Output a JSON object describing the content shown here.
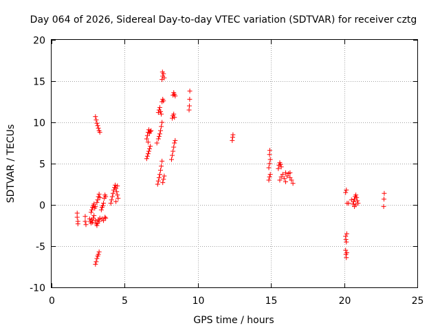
{
  "chart_data": {
    "type": "scatter",
    "title": "Day 064 of 2026, Sidereal Day-to-day VTEC variation (SDTVAR) for receiver cztg",
    "xlabel": "GPS time / hours",
    "ylabel": "SDTVAR / TECUs",
    "xlim": [
      0,
      25
    ],
    "ylim": [
      -10,
      20
    ],
    "xticks": [
      0,
      5,
      10,
      15,
      20,
      25
    ],
    "yticks": [
      -10,
      -5,
      0,
      5,
      10,
      15,
      20
    ],
    "grid": true,
    "marker": "+",
    "color": "#ff0000",
    "series": [
      {
        "name": "SDTVAR",
        "points": [
          [
            1.75,
            -1.0
          ],
          [
            1.75,
            -1.5
          ],
          [
            1.8,
            -2.0
          ],
          [
            1.8,
            -2.3
          ],
          [
            2.3,
            -1.4
          ],
          [
            2.3,
            -2.0
          ],
          [
            2.35,
            -2.4
          ],
          [
            2.6,
            -1.7
          ],
          [
            2.65,
            -2.0
          ],
          [
            2.7,
            -2.2
          ],
          [
            2.75,
            -1.8
          ],
          [
            2.8,
            -2.1
          ],
          [
            2.85,
            -1.6
          ],
          [
            2.9,
            -1.3
          ],
          [
            2.7,
            -0.9
          ],
          [
            2.75,
            -0.6
          ],
          [
            2.8,
            -0.3
          ],
          [
            2.85,
            -0.1
          ],
          [
            2.9,
            0.1
          ],
          [
            2.95,
            -0.4
          ],
          [
            3.0,
            -0.2
          ],
          [
            3.0,
            -1.9
          ],
          [
            3.05,
            -2.3
          ],
          [
            3.1,
            -2.5
          ],
          [
            3.15,
            -2.2
          ],
          [
            3.2,
            -1.8
          ],
          [
            3.25,
            -2.0
          ],
          [
            3.3,
            -1.6
          ],
          [
            3.1,
            0.3
          ],
          [
            3.15,
            0.6
          ],
          [
            3.2,
            1.0
          ],
          [
            3.25,
            1.3
          ],
          [
            3.3,
            0.9
          ],
          [
            3.4,
            -0.6
          ],
          [
            3.45,
            -0.3
          ],
          [
            3.5,
            -0.1
          ],
          [
            3.55,
            0.2
          ],
          [
            3.6,
            0.8
          ],
          [
            3.65,
            1.2
          ],
          [
            3.7,
            1.0
          ],
          [
            3.45,
            -1.7
          ],
          [
            3.55,
            -1.9
          ],
          [
            3.65,
            -1.5
          ],
          [
            3.7,
            -1.6
          ],
          [
            3.0,
            10.7
          ],
          [
            3.05,
            10.3
          ],
          [
            3.1,
            9.9
          ],
          [
            3.15,
            9.6
          ],
          [
            3.2,
            9.3
          ],
          [
            3.25,
            9.0
          ],
          [
            3.3,
            8.8
          ],
          [
            3.0,
            -7.2
          ],
          [
            3.05,
            -6.9
          ],
          [
            3.1,
            -6.5
          ],
          [
            3.15,
            -6.2
          ],
          [
            3.2,
            -6.0
          ],
          [
            3.25,
            -5.7
          ],
          [
            4.05,
            0.2
          ],
          [
            4.1,
            0.6
          ],
          [
            4.15,
            1.0
          ],
          [
            4.2,
            1.4
          ],
          [
            4.25,
            1.8
          ],
          [
            4.3,
            2.1
          ],
          [
            4.35,
            2.4
          ],
          [
            4.4,
            2.0
          ],
          [
            4.45,
            1.6
          ],
          [
            4.5,
            1.2
          ],
          [
            4.55,
            0.8
          ],
          [
            4.4,
            0.4
          ],
          [
            4.5,
            2.3
          ],
          [
            6.5,
            5.6
          ],
          [
            6.55,
            5.9
          ],
          [
            6.6,
            6.2
          ],
          [
            6.65,
            6.5
          ],
          [
            6.7,
            6.8
          ],
          [
            6.75,
            7.1
          ],
          [
            6.6,
            7.6
          ],
          [
            6.5,
            8.0
          ],
          [
            6.55,
            8.4
          ],
          [
            6.6,
            8.8
          ],
          [
            6.65,
            9.1
          ],
          [
            6.7,
            8.7
          ],
          [
            6.75,
            8.9
          ],
          [
            6.8,
            9.0
          ],
          [
            7.2,
            7.5
          ],
          [
            7.3,
            8.0
          ],
          [
            7.35,
            8.3
          ],
          [
            7.4,
            8.6
          ],
          [
            7.45,
            9.0
          ],
          [
            7.5,
            9.5
          ],
          [
            7.55,
            10.0
          ],
          [
            7.25,
            2.5
          ],
          [
            7.3,
            2.9
          ],
          [
            7.35,
            3.3
          ],
          [
            7.4,
            3.7
          ],
          [
            7.45,
            4.2
          ],
          [
            7.5,
            4.7
          ],
          [
            7.55,
            5.3
          ],
          [
            7.6,
            2.7
          ],
          [
            7.65,
            3.1
          ],
          [
            7.7,
            3.5
          ],
          [
            7.3,
            11.2
          ],
          [
            7.35,
            11.5
          ],
          [
            7.4,
            11.8
          ],
          [
            7.45,
            11.3
          ],
          [
            7.5,
            11.0
          ],
          [
            7.55,
            12.5
          ],
          [
            7.6,
            12.8
          ],
          [
            7.65,
            12.6
          ],
          [
            7.55,
            15.2
          ],
          [
            7.6,
            15.6
          ],
          [
            7.65,
            15.9
          ],
          [
            7.7,
            15.4
          ],
          [
            7.58,
            16.1
          ],
          [
            8.2,
            5.5
          ],
          [
            8.25,
            6.0
          ],
          [
            8.3,
            6.5
          ],
          [
            8.35,
            7.0
          ],
          [
            8.4,
            7.5
          ],
          [
            8.45,
            7.8
          ],
          [
            8.25,
            10.5
          ],
          [
            8.3,
            10.8
          ],
          [
            8.35,
            11.0
          ],
          [
            8.4,
            10.6
          ],
          [
            8.3,
            13.3
          ],
          [
            8.35,
            13.6
          ],
          [
            8.4,
            13.4
          ],
          [
            8.45,
            13.2
          ],
          [
            9.4,
            11.5
          ],
          [
            9.42,
            12.0
          ],
          [
            9.44,
            12.8
          ],
          [
            9.45,
            13.8
          ],
          [
            12.35,
            7.8
          ],
          [
            12.38,
            8.2
          ],
          [
            12.4,
            8.5
          ],
          [
            14.85,
            3.0
          ],
          [
            14.9,
            3.4
          ],
          [
            14.95,
            3.7
          ],
          [
            14.85,
            4.5
          ],
          [
            14.9,
            5.0
          ],
          [
            14.95,
            5.5
          ],
          [
            14.9,
            6.1
          ],
          [
            14.92,
            6.6
          ],
          [
            15.5,
            4.4
          ],
          [
            15.55,
            4.8
          ],
          [
            15.6,
            5.1
          ],
          [
            15.65,
            4.9
          ],
          [
            15.7,
            4.6
          ],
          [
            15.6,
            3.0
          ],
          [
            15.7,
            3.4
          ],
          [
            15.8,
            3.7
          ],
          [
            15.9,
            3.2
          ],
          [
            16.0,
            2.8
          ],
          [
            16.1,
            3.5
          ],
          [
            16.2,
            3.8
          ],
          [
            16.3,
            3.3
          ],
          [
            16.4,
            3.0
          ],
          [
            16.5,
            2.6
          ],
          [
            16.0,
            3.9
          ],
          [
            16.3,
            3.9
          ],
          [
            20.1,
            1.5
          ],
          [
            20.15,
            1.8
          ],
          [
            20.2,
            0.2
          ],
          [
            20.3,
            0.2
          ],
          [
            20.1,
            -3.8
          ],
          [
            20.12,
            -4.2
          ],
          [
            20.15,
            -4.5
          ],
          [
            20.18,
            -3.5
          ],
          [
            20.1,
            -5.5
          ],
          [
            20.12,
            -6.0
          ],
          [
            20.15,
            -6.4
          ],
          [
            20.18,
            -5.8
          ],
          [
            20.6,
            0.1
          ],
          [
            20.65,
            0.4
          ],
          [
            20.7,
            0.7
          ],
          [
            20.75,
            1.0
          ],
          [
            20.8,
            1.2
          ],
          [
            20.85,
            0.9
          ],
          [
            20.9,
            0.5
          ],
          [
            20.95,
            0.2
          ],
          [
            20.8,
            0.0
          ],
          [
            20.7,
            -0.2
          ],
          [
            20.5,
            0.6
          ],
          [
            22.7,
            -0.2
          ],
          [
            22.72,
            0.7
          ],
          [
            22.74,
            1.4
          ]
        ]
      }
    ]
  }
}
